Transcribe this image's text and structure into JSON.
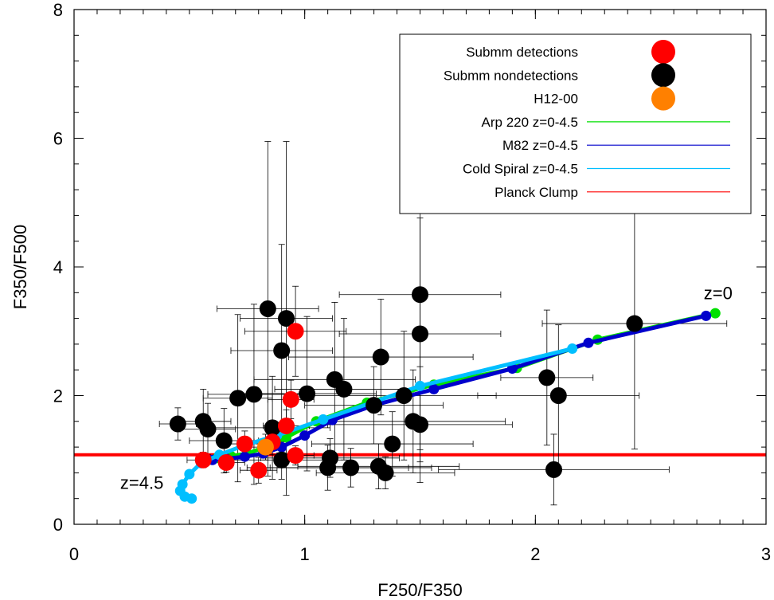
{
  "chart_data": {
    "type": "scatter",
    "xlabel": "F250/F350",
    "ylabel": "F350/F500",
    "xlim": [
      0,
      3
    ],
    "ylim": [
      0,
      8
    ],
    "xticks": [
      0,
      1,
      2,
      3
    ],
    "yticks": [
      0,
      2,
      4,
      6,
      8
    ],
    "grid": false,
    "legend_position": "top-right",
    "annotations": [
      {
        "text": "z=0",
        "x": 2.73,
        "y": 3.5
      },
      {
        "text": "z=4.5",
        "x": 0.2,
        "y": 0.55
      }
    ],
    "legend": [
      {
        "label": "Submm detections",
        "color": "#ff0000",
        "kind": "marker"
      },
      {
        "label": "Submm nondetections",
        "color": "#000000",
        "kind": "marker"
      },
      {
        "label": "H12-00",
        "color": "#ff8000",
        "kind": "marker"
      },
      {
        "label": "Arp 220 z=0-4.5",
        "color": "#00e000",
        "kind": "line"
      },
      {
        "label": "M82 z=0-4.5",
        "color": "#0000cc",
        "kind": "line"
      },
      {
        "label": "Cold Spiral z=0-4.5",
        "color": "#00bfff",
        "kind": "line"
      },
      {
        "label": "Planck Clump",
        "color": "#ff0000",
        "kind": "line"
      }
    ],
    "planck_clump_y": 1.08,
    "series": [
      {
        "name": "Submm nondetections",
        "color": "#000000",
        "points": [
          {
            "x": 0.45,
            "y": 1.56,
            "xerr": 0.08,
            "yerr": 0.25
          },
          {
            "x": 0.56,
            "y": 1.6,
            "xerr": 0.12,
            "yerr": 0.5
          },
          {
            "x": 0.58,
            "y": 1.48,
            "xerr": 0.12,
            "yerr": 0.4
          },
          {
            "x": 0.65,
            "y": 1.3,
            "xerr": 0.15,
            "yerr": 0.5
          },
          {
            "x": 0.71,
            "y": 1.96,
            "xerr": 0.15,
            "yerr": 1.3
          },
          {
            "x": 0.78,
            "y": 2.02,
            "xerr": 0.2,
            "yerr": 1.4
          },
          {
            "x": 0.84,
            "y": 3.35,
            "xerr": 0.22,
            "yerr": 2.6
          },
          {
            "x": 0.86,
            "y": 1.5,
            "xerr": 0.25,
            "yerr": 0.8
          },
          {
            "x": 0.9,
            "y": 2.7,
            "xerr": 0.22,
            "yerr": 1.65
          },
          {
            "x": 0.92,
            "y": 3.2,
            "xerr": 0.2,
            "yerr": 2.75
          },
          {
            "x": 0.9,
            "y": 1.0,
            "xerr": 0.3,
            "yerr": 0.3
          },
          {
            "x": 1.01,
            "y": 2.03,
            "xerr": 0.3,
            "yerr": 1.2
          },
          {
            "x": 1.1,
            "y": 0.88,
            "xerr": 0.35,
            "yerr": 0.35
          },
          {
            "x": 1.11,
            "y": 1.03,
            "xerr": 0.3,
            "yerr": 0.3
          },
          {
            "x": 1.13,
            "y": 2.25,
            "xerr": 0.35,
            "yerr": 1.2
          },
          {
            "x": 1.17,
            "y": 2.1,
            "xerr": 0.3,
            "yerr": 1.1
          },
          {
            "x": 1.2,
            "y": 0.88,
            "xerr": 0.35,
            "yerr": 0.3
          },
          {
            "x": 1.3,
            "y": 1.85,
            "xerr": 0.3,
            "yerr": 0.6
          },
          {
            "x": 1.32,
            "y": 0.9,
            "xerr": 0.35,
            "yerr": 0.35
          },
          {
            "x": 1.33,
            "y": 2.6,
            "xerr": 0.4,
            "yerr": 0.9
          },
          {
            "x": 1.35,
            "y": 0.8,
            "xerr": 0.3,
            "yerr": 0.25
          },
          {
            "x": 1.38,
            "y": 1.25,
            "xerr": 0.35,
            "yerr": 0.5
          },
          {
            "x": 1.43,
            "y": 2.0,
            "xerr": 0.4,
            "yerr": 1.0
          },
          {
            "x": 1.47,
            "y": 1.6,
            "xerr": 0.4,
            "yerr": 0.8
          },
          {
            "x": 1.5,
            "y": 1.55,
            "xerr": 0.4,
            "yerr": 0.9
          },
          {
            "x": 1.5,
            "y": 3.57,
            "xerr": 0.35,
            "yerr": 2.6
          },
          {
            "x": 1.5,
            "y": 2.96,
            "xerr": 0.35,
            "yerr": 1.8
          },
          {
            "x": 2.05,
            "y": 2.28,
            "xerr": 0.2,
            "yerr": 1.05
          },
          {
            "x": 2.08,
            "y": 0.85,
            "xerr": 0.5,
            "yerr": 0.55
          },
          {
            "x": 2.1,
            "y": 2.0,
            "xerr": 0.35,
            "yerr": 1.1
          },
          {
            "x": 2.43,
            "y": 3.12,
            "xerr": 0.4,
            "yerr": 1.95
          }
        ]
      },
      {
        "name": "Submm detections",
        "color": "#ff0000",
        "points": [
          {
            "x": 0.56,
            "y": 1.0,
            "xerr": 0.07,
            "yerr": 0.12
          },
          {
            "x": 0.66,
            "y": 0.96,
            "xerr": 0.08,
            "yerr": 0.15
          },
          {
            "x": 0.74,
            "y": 1.25,
            "xerr": 0.1,
            "yerr": 0.2
          },
          {
            "x": 0.8,
            "y": 0.84,
            "xerr": 0.08,
            "yerr": 0.2
          },
          {
            "x": 0.86,
            "y": 1.28,
            "xerr": 0.08,
            "yerr": 0.2
          },
          {
            "x": 0.92,
            "y": 1.53,
            "xerr": 0.1,
            "yerr": 0.25
          },
          {
            "x": 0.94,
            "y": 1.94,
            "xerr": 0.1,
            "yerr": 0.3
          },
          {
            "x": 0.96,
            "y": 1.07,
            "xerr": 0.08,
            "yerr": 0.15
          },
          {
            "x": 0.96,
            "y": 3.0,
            "xerr": 0.22,
            "yerr": 0.7
          }
        ]
      },
      {
        "name": "H12-00",
        "color": "#ff8000",
        "points": [
          {
            "x": 0.83,
            "y": 1.2,
            "xerr": 0.08,
            "yerr": 0.2
          }
        ]
      }
    ],
    "tracks": [
      {
        "name": "Arp 220 z=0-4.5",
        "color": "#00e000",
        "points": [
          [
            2.78,
            3.28
          ],
          [
            2.27,
            2.87
          ],
          [
            1.92,
            2.43
          ],
          [
            1.56,
            2.17
          ],
          [
            1.27,
            1.89
          ],
          [
            1.05,
            1.6
          ],
          [
            0.92,
            1.35
          ],
          [
            0.83,
            1.2
          ],
          [
            0.75,
            1.1
          ],
          [
            0.68,
            1.06
          ],
          [
            0.62,
            1.03
          ]
        ]
      },
      {
        "name": "M82 z=0-4.5",
        "color": "#0000cc",
        "points": [
          [
            2.74,
            3.24
          ],
          [
            2.23,
            2.82
          ],
          [
            1.9,
            2.42
          ],
          [
            1.56,
            2.1
          ],
          [
            1.3,
            1.85
          ],
          [
            1.12,
            1.62
          ],
          [
            1.0,
            1.38
          ],
          [
            0.9,
            1.2
          ],
          [
            0.82,
            1.1
          ],
          [
            0.74,
            1.05
          ],
          [
            0.66,
            1.02
          ],
          [
            0.6,
            1.0
          ]
        ]
      },
      {
        "name": "Cold Spiral z=0-4.5",
        "color": "#00bfff",
        "points": [
          [
            2.16,
            2.73
          ],
          [
            1.5,
            2.15
          ],
          [
            1.08,
            1.63
          ],
          [
            0.88,
            1.38
          ],
          [
            0.74,
            1.23
          ],
          [
            0.63,
            1.08
          ],
          [
            0.55,
            0.95
          ],
          [
            0.5,
            0.78
          ],
          [
            0.47,
            0.62
          ],
          [
            0.46,
            0.52
          ],
          [
            0.48,
            0.43
          ],
          [
            0.51,
            0.4
          ]
        ]
      }
    ]
  }
}
